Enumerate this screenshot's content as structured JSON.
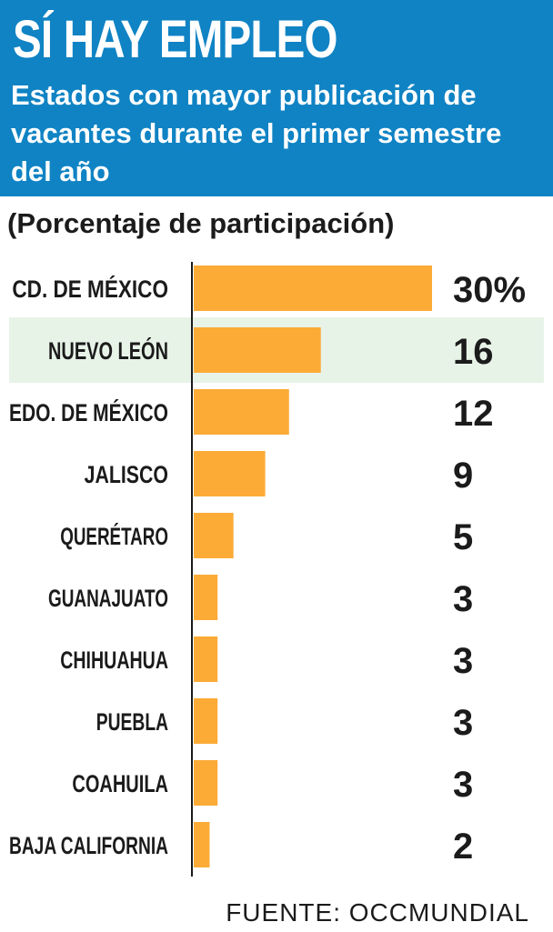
{
  "header": {
    "title": "SÍ HAY EMPLEO",
    "subtitle": "Estados con mayor publicación de vacantes durante el primer semestre del año"
  },
  "unit_label": "(Porcentaje de participación)",
  "source": "FUENTE: OCCMUNDIAL",
  "colors": {
    "header_bg": "#0f83c4",
    "bar": "#fbab36",
    "highlight": "#e8f3e8",
    "text": "#1b1b1b"
  },
  "chart_data": {
    "type": "bar",
    "orientation": "horizontal",
    "categories": [
      "CD. DE MÉXICO",
      "NUEVO LEÓN",
      "EDO. DE MÉXICO",
      "JALISCO",
      "QUERÉTARO",
      "GUANAJUATO",
      "CHIHUAHUA",
      "PUEBLA",
      "COAHUILA",
      "BAJA CALIFORNIA"
    ],
    "values": [
      30,
      16,
      12,
      9,
      5,
      3,
      3,
      3,
      3,
      2
    ],
    "value_labels": [
      "30%",
      "16",
      "12",
      "9",
      "5",
      "3",
      "3",
      "3",
      "3",
      "2"
    ],
    "highlighted_category": "NUEVO LEÓN",
    "xlim": [
      0,
      30
    ],
    "grid": false,
    "legend": "none"
  }
}
